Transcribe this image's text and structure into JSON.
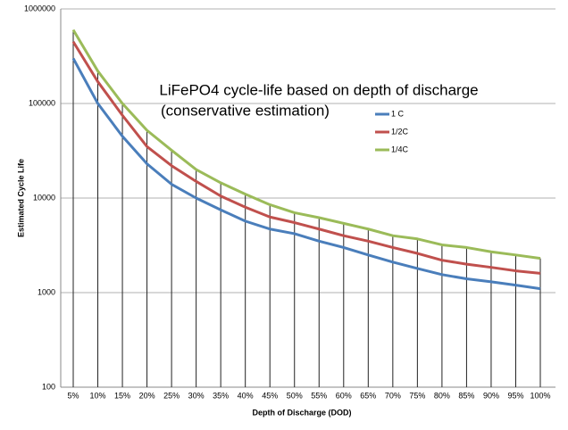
{
  "chart_data": {
    "type": "line",
    "title": "LiFePO4 cycle-life based on depth of discharge",
    "subtitle": "(conservative estimation)",
    "x_label": "Depth of Discharge (DOD)",
    "y_label": "Estimated Cycle Life",
    "categories": [
      "5%",
      "10%",
      "15%",
      "20%",
      "25%",
      "30%",
      "35%",
      "40%",
      "45%",
      "50%",
      "55%",
      "60%",
      "65%",
      "70%",
      "75%",
      "80%",
      "85%",
      "90%",
      "95%",
      "100%"
    ],
    "series": [
      {
        "name": "1 C",
        "color": "#4a7ebb",
        "values": [
          300000,
          100000,
          45000,
          23000,
          14000,
          10000,
          7500,
          5700,
          4700,
          4200,
          3500,
          3000,
          2500,
          2100,
          1800,
          1550,
          1400,
          1300,
          1200,
          1100
        ]
      },
      {
        "name": "1/2C",
        "color": "#c0504d",
        "values": [
          450000,
          170000,
          75000,
          35000,
          22000,
          15000,
          10500,
          8000,
          6300,
          5500,
          4700,
          4000,
          3500,
          3000,
          2600,
          2200,
          2000,
          1850,
          1700,
          1600
        ]
      },
      {
        "name": "1/4C",
        "color": "#9bbb59",
        "values": [
          600000,
          220000,
          100000,
          52000,
          32000,
          20000,
          14500,
          11000,
          8500,
          7000,
          6200,
          5400,
          4700,
          4000,
          3700,
          3200,
          3000,
          2700,
          2500,
          2300
        ]
      }
    ],
    "log_scale": true,
    "ylim": [
      100,
      1000000
    ],
    "yticks": [
      100,
      1000,
      10000,
      100000,
      1000000
    ],
    "grid": true,
    "drop_lines": true,
    "legend_position": "center"
  }
}
